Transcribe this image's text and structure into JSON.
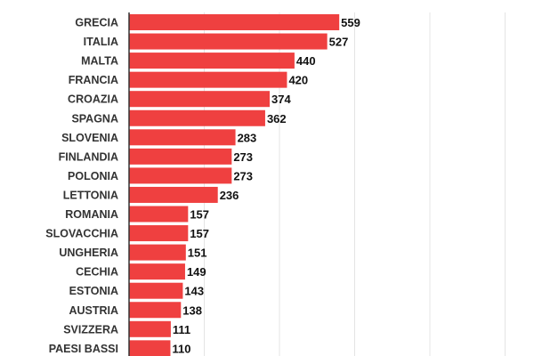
{
  "chart_data": {
    "type": "bar",
    "orientation": "horizontal",
    "categories": [
      "GRECIA",
      "ITALIA",
      "MALTA",
      "FRANCIA",
      "CROAZIA",
      "SPAGNA",
      "SLOVENIA",
      "FINLANDIA",
      "POLONIA",
      "LETTONIA",
      "ROMANIA",
      "SLOVACCHIA",
      "UNGHERIA",
      "CECHIA",
      "ESTONIA",
      "AUSTRIA",
      "SVIZZERA",
      "PAESI BASSI"
    ],
    "values": [
      559,
      527,
      440,
      420,
      374,
      362,
      283,
      273,
      273,
      236,
      157,
      157,
      151,
      149,
      143,
      138,
      111,
      110
    ],
    "xlim": [
      0,
      1000
    ],
    "grid": true,
    "bar_color": "#ef4040",
    "xlabel": "",
    "ylabel": ""
  }
}
